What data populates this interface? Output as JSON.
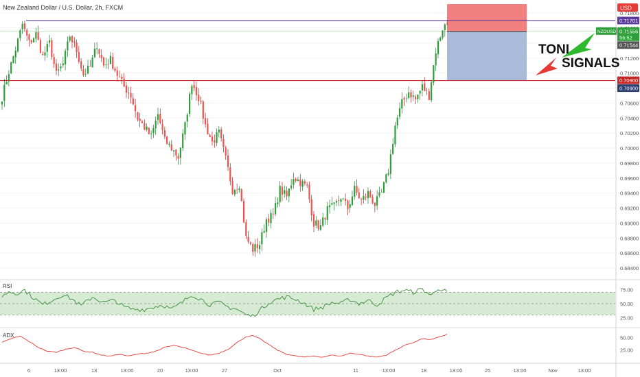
{
  "header": {
    "title": "New Zealand Dollar / U.S. Dollar, 2h, FXCM"
  },
  "currency_badge": "USD",
  "logo": {
    "line1": "TONI",
    "line2": "SIGNALS"
  },
  "colors": {
    "up": "#26a69a",
    "up_fill": "#2e9e3a",
    "down": "#ef5350",
    "resistance": "#5b3c9e",
    "support": "#c62828",
    "stop_zone": "#f28080",
    "target_zone": "#a9bbd8",
    "rsi": "#3a8a3a",
    "rsi_band": "#c9e3c4",
    "adx": "#e53935"
  },
  "chart_data": {
    "type": "candlestick",
    "symbol": "NZDUSD",
    "timeframe": "2h",
    "price_range": [
      0.683,
      0.7192
    ],
    "price_ticks": [
      "0.71800",
      "0.71600",
      "0.71400",
      "0.71200",
      "0.71000",
      "0.70800",
      "0.70600",
      "0.70400",
      "0.70200",
      "0.70000",
      "0.69800",
      "0.69600",
      "0.69400",
      "0.69200",
      "0.69000",
      "0.68800",
      "0.68600",
      "0.68400"
    ],
    "x_ticks": [
      "6",
      "13:00",
      "13",
      "13:00",
      "20",
      "13:00",
      "27",
      "Oct",
      "11",
      "13:00",
      "18",
      "13:00",
      "25",
      "13:00",
      "Nov",
      "13:00"
    ],
    "resistance": 0.71701,
    "support": 0.709,
    "trade": {
      "stop_high": 0.7192,
      "entry": 0.71556,
      "target": 0.709
    },
    "labels": {
      "resistance": "0.71701",
      "symbol": "NZDUSD",
      "last_price": "0.71556",
      "countdown": "56:52",
      "prev": "0.71544",
      "support_top": "0.70900",
      "support_bottom": "0.70900"
    },
    "path_anchors": [
      [
        0,
        0.7068
      ],
      [
        3,
        0.7102
      ],
      [
        6,
        0.7132
      ],
      [
        9,
        0.7165
      ],
      [
        12,
        0.714
      ],
      [
        15,
        0.7152
      ],
      [
        18,
        0.7122
      ],
      [
        21,
        0.714
      ],
      [
        24,
        0.7098
      ],
      [
        27,
        0.7112
      ],
      [
        30,
        0.715
      ],
      [
        33,
        0.713
      ],
      [
        36,
        0.7098
      ],
      [
        39,
        0.7108
      ],
      [
        42,
        0.7138
      ],
      [
        45,
        0.711
      ],
      [
        48,
        0.7118
      ],
      [
        51,
        0.7098
      ],
      [
        54,
        0.7082
      ],
      [
        57,
        0.707
      ],
      [
        60,
        0.704
      ],
      [
        63,
        0.7028
      ],
      [
        66,
        0.7015
      ],
      [
        69,
        0.7045
      ],
      [
        72,
        0.701
      ],
      [
        75,
        0.7
      ],
      [
        78,
        0.6988
      ],
      [
        81,
        0.703
      ],
      [
        84,
        0.7088
      ],
      [
        87,
        0.7068
      ],
      [
        90,
        0.703
      ],
      [
        93,
        0.7008
      ],
      [
        96,
        0.702
      ],
      [
        99,
        0.6985
      ],
      [
        102,
        0.6945
      ],
      [
        105,
        0.6952
      ],
      [
        108,
        0.688
      ],
      [
        111,
        0.6865
      ],
      [
        114,
        0.6872
      ],
      [
        117,
        0.6905
      ],
      [
        120,
        0.691
      ],
      [
        123,
        0.6945
      ],
      [
        126,
        0.6935
      ],
      [
        129,
        0.6962
      ],
      [
        132,
        0.6955
      ],
      [
        135,
        0.6948
      ],
      [
        138,
        0.69
      ],
      [
        141,
        0.6895
      ],
      [
        144,
        0.6918
      ],
      [
        147,
        0.6922
      ],
      [
        150,
        0.6935
      ],
      [
        153,
        0.692
      ],
      [
        156,
        0.6945
      ],
      [
        159,
        0.693
      ],
      [
        162,
        0.694
      ],
      [
        165,
        0.6925
      ],
      [
        168,
        0.694
      ],
      [
        171,
        0.697
      ],
      [
        174,
        0.703
      ],
      [
        177,
        0.706
      ],
      [
        180,
        0.7075
      ],
      [
        183,
        0.7065
      ],
      [
        186,
        0.7082
      ],
      [
        189,
        0.707
      ],
      [
        192,
        0.713
      ],
      [
        195,
        0.716
      ],
      [
        197,
        0.7166
      ]
    ],
    "rsi": {
      "label": "RSI",
      "ticks": [
        "75.00",
        "50.00",
        "25.00"
      ],
      "range": [
        10,
        90
      ],
      "levels": [
        70,
        30
      ],
      "anchors": [
        [
          0,
          62
        ],
        [
          3,
          72
        ],
        [
          6,
          68
        ],
        [
          10,
          74
        ],
        [
          14,
          60
        ],
        [
          18,
          48
        ],
        [
          22,
          56
        ],
        [
          27,
          66
        ],
        [
          31,
          58
        ],
        [
          35,
          46
        ],
        [
          40,
          62
        ],
        [
          45,
          52
        ],
        [
          50,
          56
        ],
        [
          54,
          44
        ],
        [
          58,
          40
        ],
        [
          63,
          40
        ],
        [
          67,
          44
        ],
        [
          71,
          48
        ],
        [
          75,
          40
        ],
        [
          79,
          50
        ],
        [
          84,
          66
        ],
        [
          88,
          58
        ],
        [
          92,
          48
        ],
        [
          96,
          52
        ],
        [
          100,
          44
        ],
        [
          104,
          40
        ],
        [
          108,
          30
        ],
        [
          111,
          28
        ],
        [
          114,
          38
        ],
        [
          118,
          52
        ],
        [
          122,
          58
        ],
        [
          126,
          62
        ],
        [
          130,
          58
        ],
        [
          134,
          50
        ],
        [
          138,
          40
        ],
        [
          142,
          44
        ],
        [
          146,
          52
        ],
        [
          150,
          50
        ],
        [
          154,
          58
        ],
        [
          158,
          50
        ],
        [
          162,
          56
        ],
        [
          166,
          48
        ],
        [
          170,
          60
        ],
        [
          174,
          70
        ],
        [
          178,
          74
        ],
        [
          182,
          70
        ],
        [
          186,
          76
        ],
        [
          190,
          64
        ],
        [
          193,
          78
        ],
        [
          196,
          72
        ],
        [
          197,
          70
        ]
      ]
    },
    "adx": {
      "label": "ADX",
      "ticks": [
        "50.00",
        "25.00"
      ],
      "range": [
        0,
        65
      ],
      "anchors": [
        [
          0,
          40
        ],
        [
          4,
          48
        ],
        [
          8,
          53
        ],
        [
          12,
          42
        ],
        [
          16,
          30
        ],
        [
          20,
          22
        ],
        [
          24,
          20
        ],
        [
          28,
          26
        ],
        [
          32,
          30
        ],
        [
          36,
          22
        ],
        [
          40,
          20
        ],
        [
          44,
          14
        ],
        [
          48,
          12
        ],
        [
          52,
          16
        ],
        [
          56,
          12
        ],
        [
          60,
          16
        ],
        [
          64,
          18
        ],
        [
          68,
          22
        ],
        [
          72,
          30
        ],
        [
          76,
          34
        ],
        [
          80,
          30
        ],
        [
          84,
          24
        ],
        [
          88,
          18
        ],
        [
          92,
          14
        ],
        [
          96,
          18
        ],
        [
          100,
          26
        ],
        [
          104,
          40
        ],
        [
          108,
          52
        ],
        [
          111,
          54
        ],
        [
          114,
          48
        ],
        [
          118,
          36
        ],
        [
          122,
          24
        ],
        [
          126,
          16
        ],
        [
          130,
          12
        ],
        [
          134,
          10
        ],
        [
          138,
          12
        ],
        [
          142,
          10
        ],
        [
          146,
          14
        ],
        [
          150,
          12
        ],
        [
          154,
          18
        ],
        [
          158,
          16
        ],
        [
          162,
          12
        ],
        [
          166,
          10
        ],
        [
          170,
          14
        ],
        [
          174,
          24
        ],
        [
          178,
          34
        ],
        [
          182,
          40
        ],
        [
          186,
          48
        ],
        [
          190,
          46
        ],
        [
          194,
          52
        ],
        [
          197,
          57
        ]
      ]
    }
  }
}
